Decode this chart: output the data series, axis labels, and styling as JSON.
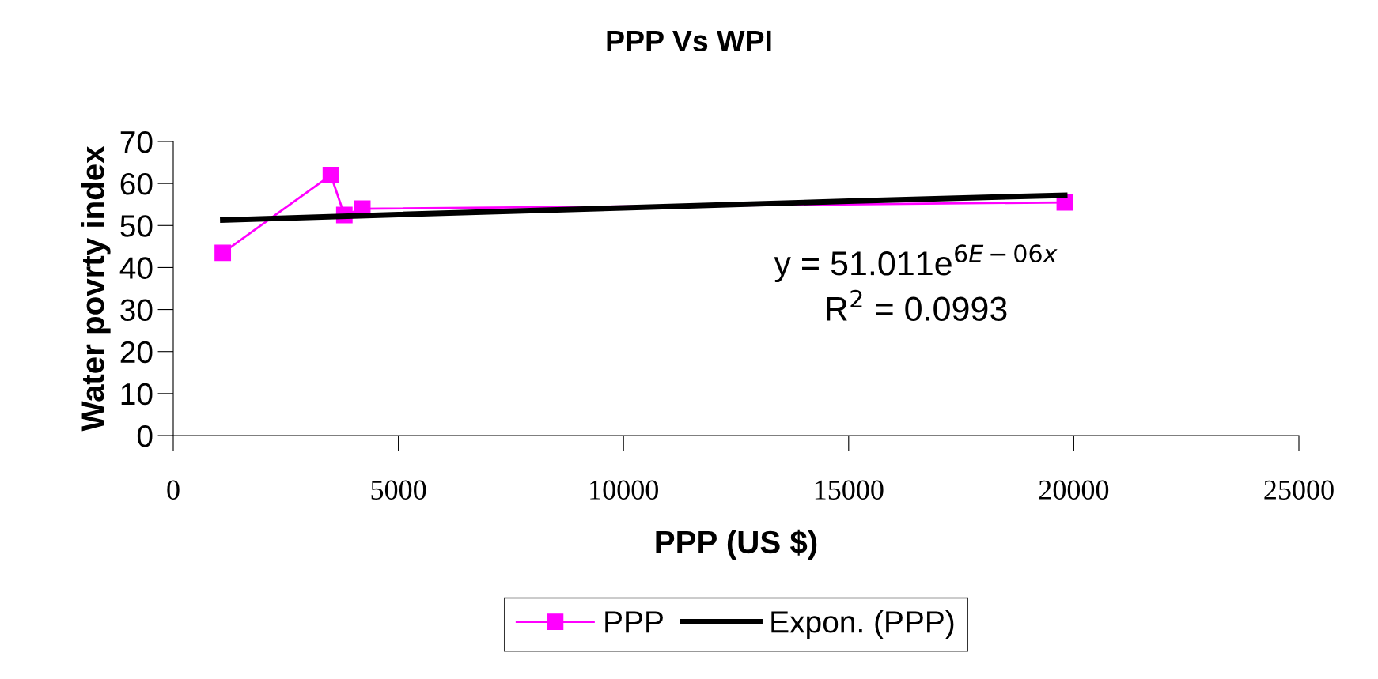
{
  "chart_data": {
    "type": "line",
    "title": "PPP Vs WPI",
    "xlabel": "PPP (US $)",
    "ylabel": "Water povrty index",
    "series": [
      {
        "name": "PPP",
        "color": "#ff00ff",
        "marker": "square",
        "x": [
          1100,
          3500,
          3800,
          4200,
          19800
        ],
        "values": [
          43.5,
          62,
          52.5,
          54,
          55.5
        ]
      },
      {
        "name": "Expon. (PPP)",
        "color": "#000000",
        "marker": "none",
        "x": [
          1100,
          5000,
          10000,
          15000,
          19800
        ],
        "values": [
          51.3,
          52.6,
          54.2,
          55.8,
          57.2
        ]
      }
    ],
    "annotations": [
      "y = 51.011e$^{6E−06x}$",
      "R$^{2}$ = 0.0993"
    ],
    "xlim": [
      0,
      25000
    ],
    "xticks": [
      0,
      5000,
      10000,
      15000,
      20000,
      25000
    ],
    "ylim": [
      0,
      70
    ],
    "yticks": [
      0,
      10,
      20,
      30,
      40,
      50,
      60,
      70
    ],
    "grid": false,
    "legend": "bottom"
  }
}
